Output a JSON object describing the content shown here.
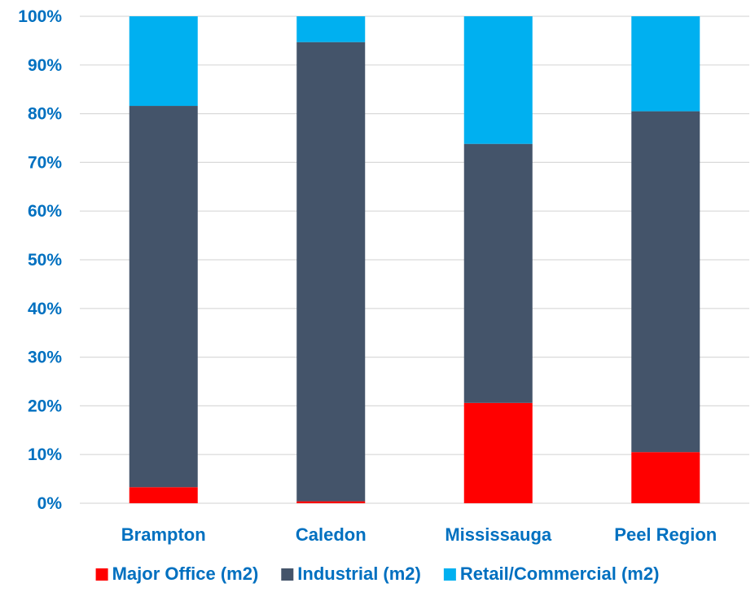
{
  "chart_data": {
    "type": "bar",
    "stacked": true,
    "percent": true,
    "categories": [
      "Brampton",
      "Caledon",
      "Mississauga",
      "Peel Region"
    ],
    "series": [
      {
        "name": "Major Office (m2)",
        "color": "#ff0000",
        "values": [
          3.3,
          0.4,
          20.6,
          10.5
        ]
      },
      {
        "name": "Industrial (m2)",
        "color": "#44546a",
        "values": [
          78.3,
          94.3,
          53.2,
          70.0
        ]
      },
      {
        "name": "Retail/Commercial (m2)",
        "color": "#00b0f0",
        "values": [
          18.4,
          5.3,
          26.2,
          19.5
        ]
      }
    ],
    "yticks": [
      "0%",
      "10%",
      "20%",
      "30%",
      "40%",
      "50%",
      "60%",
      "70%",
      "80%",
      "90%",
      "100%"
    ],
    "ylim": [
      0,
      100
    ],
    "grid": true,
    "legend_position": "bottom",
    "title": "",
    "xlabel": "",
    "ylabel": "",
    "text_color": "#0070c0",
    "grid_color": "#d9d9d9"
  }
}
